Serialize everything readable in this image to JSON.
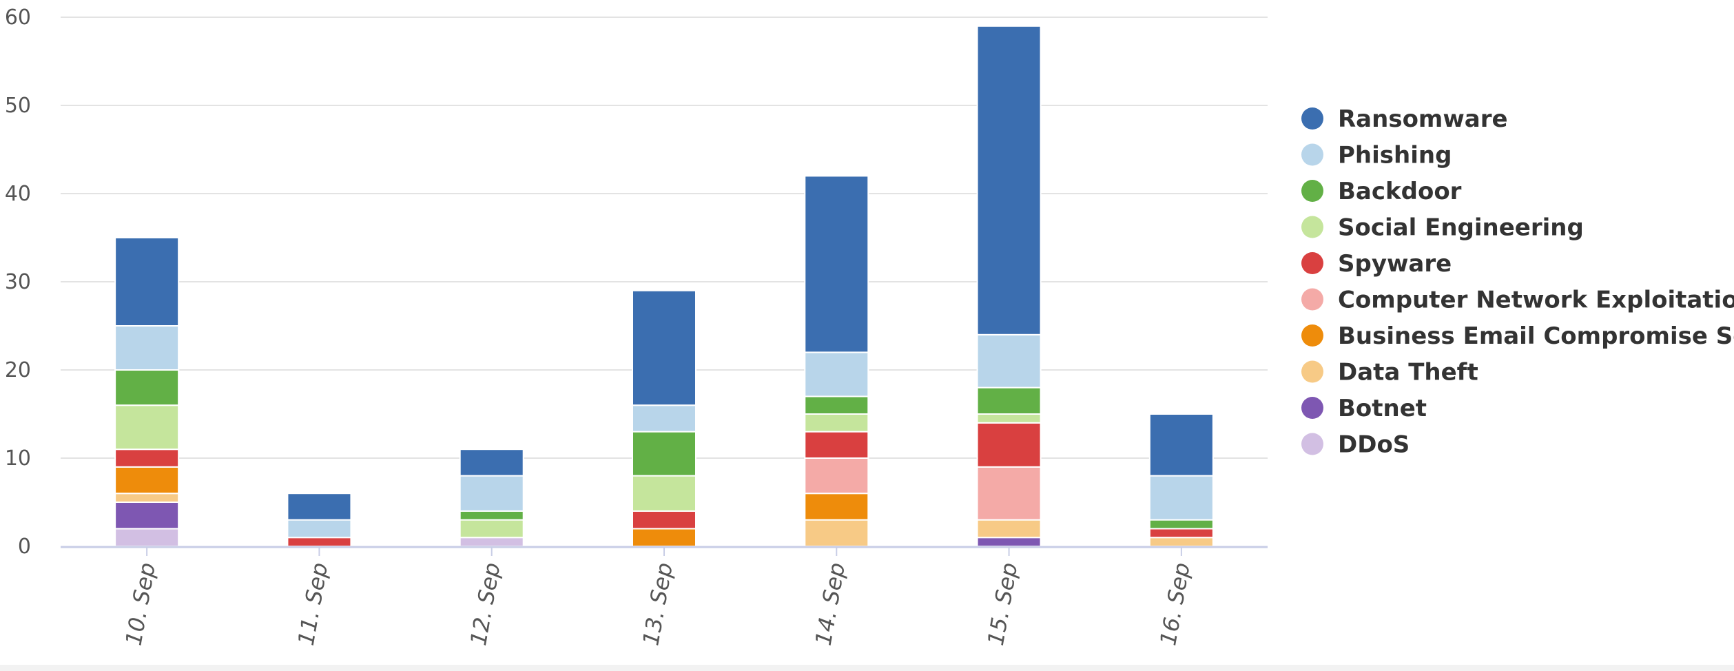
{
  "chart_data": {
    "type": "bar",
    "stacked": true,
    "categories": [
      "10. Sep",
      "11. Sep",
      "12. Sep",
      "13. Sep",
      "14. Sep",
      "15. Sep",
      "16. Sep"
    ],
    "ylim": [
      0,
      60
    ],
    "yticks": [
      0,
      10,
      20,
      30,
      40,
      50,
      60
    ],
    "grid": true,
    "legend_position": "right",
    "series": [
      {
        "name": "Ransomware",
        "color": "#3b6eb0",
        "values": [
          10,
          3,
          3,
          13,
          20,
          35,
          7
        ]
      },
      {
        "name": "Phishing",
        "color": "#b8d5ea",
        "values": [
          5,
          2,
          4,
          3,
          5,
          6,
          5
        ]
      },
      {
        "name": "Backdoor",
        "color": "#62b046",
        "values": [
          4,
          0,
          1,
          5,
          2,
          3,
          1
        ]
      },
      {
        "name": "Social Engineering",
        "color": "#c5e59c",
        "values": [
          5,
          0,
          2,
          4,
          2,
          1,
          0
        ]
      },
      {
        "name": "Spyware",
        "color": "#d94040",
        "values": [
          2,
          1,
          0,
          2,
          3,
          5,
          1
        ]
      },
      {
        "name": "Computer Network Exploitation",
        "color": "#f4aaa7",
        "values": [
          0,
          0,
          0,
          0,
          4,
          6,
          0
        ]
      },
      {
        "name": "Business Email Compromise Scam",
        "color": "#ee8c0b",
        "values": [
          3,
          0,
          0,
          2,
          3,
          0,
          0
        ]
      },
      {
        "name": "Data Theft",
        "color": "#f7ca86",
        "values": [
          1,
          0,
          0,
          0,
          3,
          2,
          1
        ]
      },
      {
        "name": "Botnet",
        "color": "#7e57b2",
        "values": [
          3,
          0,
          0,
          0,
          0,
          1,
          0
        ]
      },
      {
        "name": "DDoS",
        "color": "#d2bfe3",
        "values": [
          2,
          0,
          1,
          0,
          0,
          0,
          0
        ]
      }
    ]
  }
}
